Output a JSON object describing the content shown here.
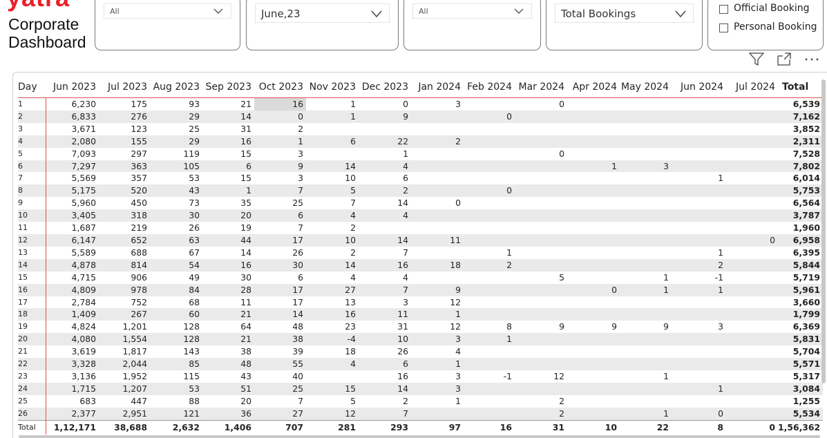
{
  "header": {
    "logo_text": "yatra",
    "title_line1": "Corporate",
    "title_line2": "Dashboard"
  },
  "slicers": {
    "s1_value": "All",
    "s2_value": "June,23",
    "s3_value": "All",
    "s4_value": "Total Bookings",
    "opt1": "Official Booking",
    "opt2": "Personal Booking"
  },
  "toolbar": {
    "icons": [
      "filter-icon",
      "focus-mode-icon",
      "more-options-icon"
    ]
  },
  "matrix": {
    "corner": "Day",
    "columns": [
      "Jun 2023",
      "Jul 2023",
      "Aug 2023",
      "Sep 2023",
      "Oct 2023",
      "Nov 2023",
      "Dec 2023",
      "Jan 2024",
      "Feb 2024",
      "Mar 2024",
      "Apr 2024",
      "May 2024",
      "Jun 2024",
      "Jul 2024"
    ],
    "total_label": "Total",
    "rows": [
      {
        "day": "1",
        "values": [
          "6,230",
          "175",
          "93",
          "21",
          "16",
          "1",
          "0",
          "3",
          "",
          "0",
          "",
          "",
          "",
          ""
        ],
        "total": "6,539"
      },
      {
        "day": "2",
        "values": [
          "6,833",
          "276",
          "29",
          "14",
          "0",
          "1",
          "9",
          "",
          "0",
          "",
          "",
          "",
          "",
          ""
        ],
        "total": "7,162"
      },
      {
        "day": "3",
        "values": [
          "3,671",
          "123",
          "25",
          "31",
          "2",
          "",
          "",
          "",
          "",
          "",
          "",
          "",
          "",
          ""
        ],
        "total": "3,852"
      },
      {
        "day": "4",
        "values": [
          "2,080",
          "155",
          "29",
          "16",
          "1",
          "6",
          "22",
          "2",
          "",
          "",
          "",
          "",
          "",
          ""
        ],
        "total": "2,311"
      },
      {
        "day": "5",
        "values": [
          "7,093",
          "297",
          "119",
          "15",
          "3",
          "",
          "1",
          "",
          "",
          "0",
          "",
          "",
          "",
          ""
        ],
        "total": "7,528"
      },
      {
        "day": "6",
        "values": [
          "7,297",
          "363",
          "105",
          "6",
          "9",
          "14",
          "4",
          "",
          "",
          "",
          "1",
          "3",
          "",
          ""
        ],
        "total": "7,802"
      },
      {
        "day": "7",
        "values": [
          "5,569",
          "357",
          "53",
          "15",
          "3",
          "10",
          "6",
          "",
          "",
          "",
          "",
          "",
          "1",
          ""
        ],
        "total": "6,014"
      },
      {
        "day": "8",
        "values": [
          "5,175",
          "520",
          "43",
          "1",
          "7",
          "5",
          "2",
          "",
          "0",
          "",
          "",
          "",
          "",
          ""
        ],
        "total": "5,753"
      },
      {
        "day": "9",
        "values": [
          "5,960",
          "450",
          "73",
          "35",
          "25",
          "7",
          "14",
          "0",
          "",
          "",
          "",
          "",
          "",
          ""
        ],
        "total": "6,564"
      },
      {
        "day": "10",
        "values": [
          "3,405",
          "318",
          "30",
          "20",
          "6",
          "4",
          "4",
          "",
          "",
          "",
          "",
          "",
          "",
          ""
        ],
        "total": "3,787"
      },
      {
        "day": "11",
        "values": [
          "1,687",
          "219",
          "26",
          "19",
          "7",
          "2",
          "",
          "",
          "",
          "",
          "",
          "",
          "",
          ""
        ],
        "total": "1,960"
      },
      {
        "day": "12",
        "values": [
          "6,147",
          "652",
          "63",
          "44",
          "17",
          "10",
          "14",
          "11",
          "",
          "",
          "",
          "",
          "",
          "0"
        ],
        "total": "6,958"
      },
      {
        "day": "13",
        "values": [
          "5,589",
          "688",
          "67",
          "14",
          "26",
          "2",
          "7",
          "",
          "1",
          "",
          "",
          "",
          "1",
          ""
        ],
        "total": "6,395"
      },
      {
        "day": "14",
        "values": [
          "4,878",
          "814",
          "54",
          "16",
          "30",
          "14",
          "16",
          "18",
          "2",
          "",
          "",
          "",
          "2",
          ""
        ],
        "total": "5,844"
      },
      {
        "day": "15",
        "values": [
          "4,715",
          "906",
          "49",
          "30",
          "6",
          "4",
          "4",
          "",
          "",
          "5",
          "",
          "1",
          "-1",
          ""
        ],
        "total": "5,719"
      },
      {
        "day": "16",
        "values": [
          "4,809",
          "978",
          "84",
          "28",
          "17",
          "27",
          "7",
          "9",
          "",
          "",
          "0",
          "1",
          "1",
          ""
        ],
        "total": "5,961"
      },
      {
        "day": "17",
        "values": [
          "2,784",
          "752",
          "68",
          "11",
          "17",
          "13",
          "3",
          "12",
          "",
          "",
          "",
          "",
          "",
          ""
        ],
        "total": "3,660"
      },
      {
        "day": "18",
        "values": [
          "1,409",
          "267",
          "60",
          "21",
          "14",
          "16",
          "11",
          "1",
          "",
          "",
          "",
          "",
          "",
          ""
        ],
        "total": "1,799"
      },
      {
        "day": "19",
        "values": [
          "4,824",
          "1,201",
          "128",
          "64",
          "48",
          "23",
          "31",
          "12",
          "8",
          "9",
          "9",
          "9",
          "3",
          ""
        ],
        "total": "6,369"
      },
      {
        "day": "20",
        "values": [
          "4,080",
          "1,554",
          "128",
          "21",
          "38",
          "-4",
          "10",
          "3",
          "1",
          "",
          "",
          "",
          "",
          ""
        ],
        "total": "5,831"
      },
      {
        "day": "21",
        "values": [
          "3,619",
          "1,817",
          "143",
          "38",
          "39",
          "18",
          "26",
          "4",
          "",
          "",
          "",
          "",
          "",
          ""
        ],
        "total": "5,704"
      },
      {
        "day": "22",
        "values": [
          "3,328",
          "2,044",
          "85",
          "48",
          "55",
          "4",
          "6",
          "1",
          "",
          "",
          "",
          "",
          "",
          ""
        ],
        "total": "5,571"
      },
      {
        "day": "23",
        "values": [
          "3,136",
          "1,952",
          "115",
          "43",
          "40",
          "",
          "16",
          "3",
          "-1",
          "12",
          "",
          "1",
          "",
          ""
        ],
        "total": "5,317"
      },
      {
        "day": "24",
        "values": [
          "1,715",
          "1,207",
          "53",
          "51",
          "25",
          "15",
          "14",
          "3",
          "",
          "",
          "",
          "",
          "1",
          ""
        ],
        "total": "3,084"
      },
      {
        "day": "25",
        "values": [
          "683",
          "447",
          "88",
          "20",
          "7",
          "5",
          "2",
          "1",
          "",
          "2",
          "",
          "",
          "",
          ""
        ],
        "total": "1,255"
      },
      {
        "day": "26",
        "values": [
          "2,377",
          "2,951",
          "121",
          "36",
          "27",
          "12",
          "7",
          "",
          "",
          "2",
          "",
          "1",
          "0",
          ""
        ],
        "total": "5,534"
      }
    ],
    "totals": {
      "day": "Total",
      "values": [
        "1,12,171",
        "38,688",
        "2,632",
        "1,406",
        "707",
        "281",
        "293",
        "97",
        "16",
        "31",
        "10",
        "22",
        "8",
        "0"
      ],
      "total": "1,56,362"
    }
  }
}
